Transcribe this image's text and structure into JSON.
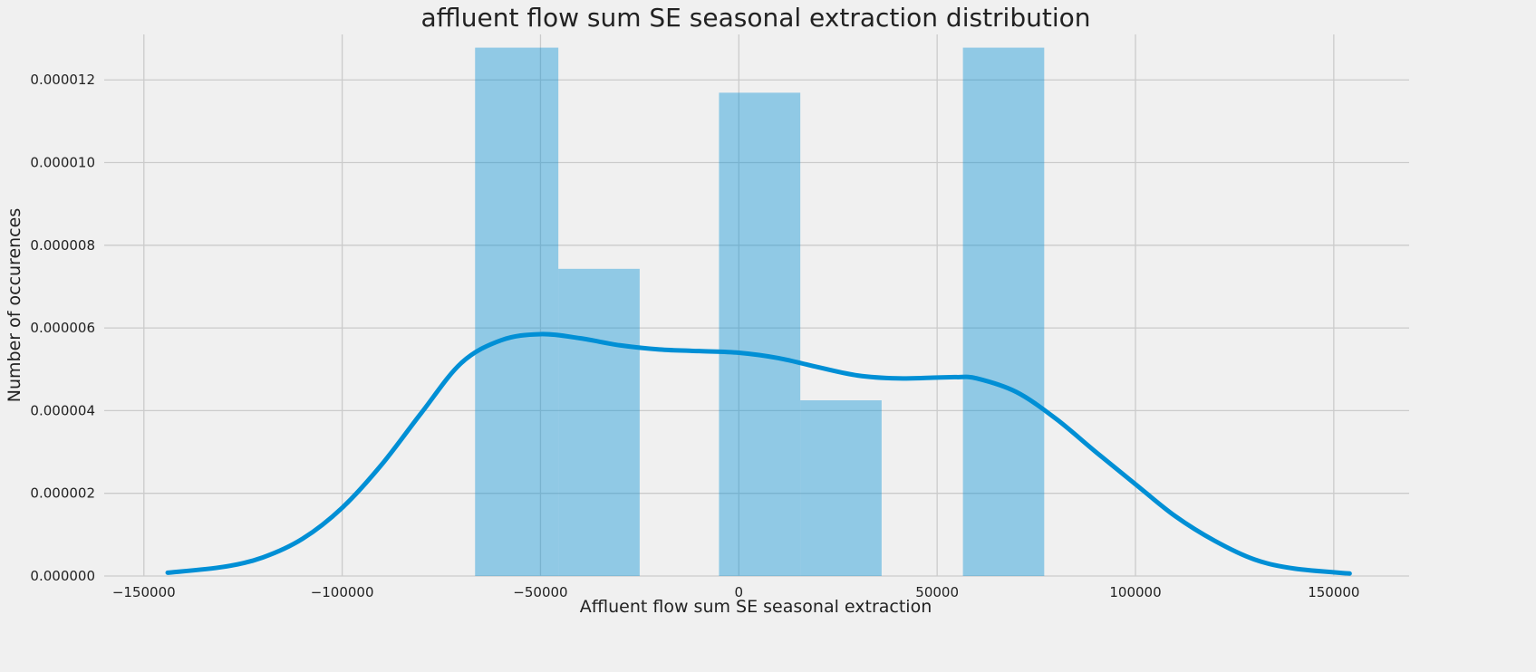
{
  "chart_data": {
    "type": "histogram",
    "title": "affluent flow sum SE seasonal extraction distribution",
    "xlabel": "Affluent flow sum SE seasonal extraction",
    "ylabel": "Number of occurences",
    "xlim": [
      -160000,
      169000
    ],
    "ylim": [
      0,
      1.31e-05
    ],
    "grid": true,
    "x_ticks": [
      -150000,
      -100000,
      -50000,
      0,
      50000,
      100000,
      150000
    ],
    "x_tick_labels": [
      "−150000",
      "−100000",
      "−50000",
      "0",
      "50000",
      "100000",
      "150000"
    ],
    "y_ticks": [
      0,
      2e-06,
      4e-06,
      6e-06,
      8e-06,
      1e-05,
      1.2e-05
    ],
    "y_tick_labels": [
      "0.000000",
      "0.000002",
      "0.000004",
      "0.000006",
      "0.000008",
      "0.000010",
      "0.000012"
    ],
    "colors": {
      "background": "#f0f0f0",
      "grid": "#cbcbcb",
      "bar_fill": "#008fd5",
      "bar_opacity": 0.4,
      "kde_line": "#008fd5"
    },
    "bins": [
      {
        "x0": -66500,
        "x1": -45500,
        "density": 1.278e-05
      },
      {
        "x0": -45500,
        "x1": -25000,
        "density": 7.43e-06
      },
      {
        "x0": -25000,
        "x1": -5000,
        "density": 0
      },
      {
        "x0": -5000,
        "x1": 15500,
        "density": 1.169e-05
      },
      {
        "x0": 15500,
        "x1": 36000,
        "density": 4.25e-06
      },
      {
        "x0": 36000,
        "x1": 56500,
        "density": 0
      },
      {
        "x0": 56500,
        "x1": 77000,
        "density": 1.278e-05
      }
    ],
    "kde": {
      "x": [
        -144000,
        -130000,
        -120000,
        -110000,
        -100000,
        -90000,
        -80000,
        -70000,
        -60000,
        -50000,
        -40000,
        -30000,
        -20000,
        -10000,
        0,
        10000,
        20000,
        30000,
        40000,
        50000,
        55000,
        60000,
        70000,
        80000,
        90000,
        100000,
        110000,
        120000,
        130000,
        140000,
        154000
      ],
      "y": [
        8e-08,
        2.2e-07,
        4.5e-07,
        9e-07,
        1.65e-06,
        2.7e-06,
        3.95e-06,
        5.15e-06,
        5.7e-06,
        5.85e-06,
        5.75e-06,
        5.58e-06,
        5.48e-06,
        5.44e-06,
        5.4e-06,
        5.27e-06,
        5.05e-06,
        4.85e-06,
        4.78e-06,
        4.8e-06,
        4.81e-06,
        4.78e-06,
        4.45e-06,
        3.8e-06,
        3e-06,
        2.22e-06,
        1.45e-06,
        8.5e-07,
        4e-07,
        1.8e-07,
        6e-08
      ]
    }
  }
}
